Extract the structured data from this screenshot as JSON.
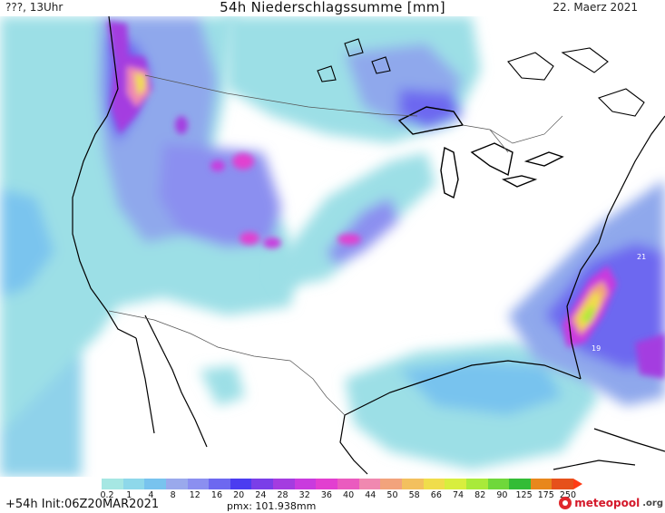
{
  "header": {
    "left": "???, 13Uhr",
    "title": "54h Niederschlagssumme [mm]",
    "date": "22. Maerz 2021"
  },
  "map": {
    "label_a": "21",
    "label_b": "19"
  },
  "legend": {
    "ticks": [
      "0.2",
      "1",
      "4",
      "8",
      "12",
      "16",
      "20",
      "24",
      "28",
      "32",
      "36",
      "40",
      "44",
      "50",
      "58",
      "66",
      "74",
      "82",
      "90",
      "125",
      "175",
      "250"
    ],
    "colors": [
      "#a6e7e3",
      "#8ed8ea",
      "#78c3ee",
      "#9aa9ec",
      "#8b8ff0",
      "#6d68f0",
      "#4b3cf0",
      "#7a3ee8",
      "#a43ce0",
      "#c93bde",
      "#e23fd0",
      "#ea5bbf",
      "#f088b0",
      "#f2a37c",
      "#f3c05e",
      "#f0dd4b",
      "#d8ee3e",
      "#a9ea3a",
      "#6fd83b",
      "#33bc36",
      "#e8871c",
      "#e6511b"
    ]
  },
  "footer": {
    "run": "+54h Init:06Z20MAR2021",
    "pmx": "pmx: 101.938mm",
    "brand_a": "meteopool",
    "brand_b": ".org"
  }
}
